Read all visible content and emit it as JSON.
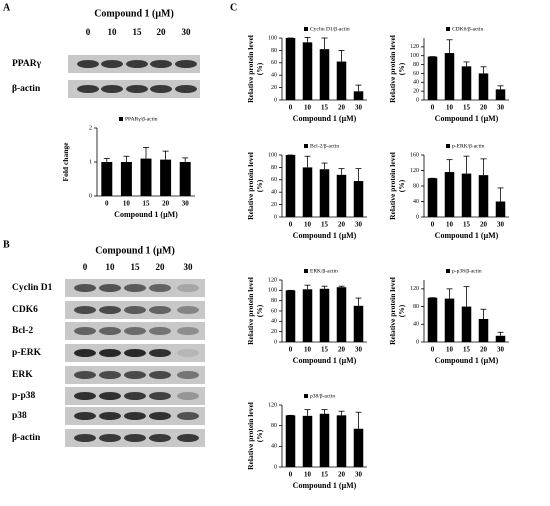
{
  "panel_labels": [
    "A",
    "B",
    "C"
  ],
  "blot_A": {
    "title": "Compound 1 (μM)",
    "lanes": [
      "0",
      "10",
      "15",
      "20",
      "30"
    ],
    "rows": [
      "PPARγ",
      "β-actin"
    ]
  },
  "blot_B": {
    "title": "Compound 1 (μM)",
    "lanes": [
      "0",
      "10",
      "15",
      "20",
      "30"
    ],
    "rows": [
      "Cyclin D1",
      "CDK6",
      "Bcl-2",
      "p-ERK",
      "ERK",
      "p-p38",
      "p38",
      "β-actin"
    ]
  },
  "chart_data": [
    {
      "type": "bar",
      "legend": "PPARγ/β-actin",
      "y_label": "Fold change",
      "x_label": "Compound 1 (μM)",
      "categories": [
        "0",
        "10",
        "15",
        "20",
        "30"
      ],
      "values": [
        1,
        1,
        1.1,
        1.07,
        1
      ],
      "errors": [
        0.1,
        0.17,
        0.33,
        0.25,
        0.12
      ],
      "ylim": [
        0,
        2
      ],
      "yticks": [
        0,
        1,
        2
      ],
      "color": "#000000"
    },
    {
      "type": "bar",
      "legend": "Cyclin D1/β-actin",
      "y_label": "Relative protein level (%)",
      "x_label": "Compound 1 (μM)",
      "categories": [
        "0",
        "10",
        "15",
        "20",
        "30"
      ],
      "values": [
        100,
        93,
        82,
        62,
        14
      ],
      "errors": [
        0,
        8,
        18,
        18,
        10
      ],
      "ylim": [
        0,
        100
      ],
      "yticks": [
        0,
        20,
        40,
        60,
        80,
        100
      ],
      "color": "#000000"
    },
    {
      "type": "bar",
      "legend": "CDK6/β-actin",
      "y_label": "Relative protein level (%)",
      "x_label": "Compound 1 (μM)",
      "categories": [
        "0",
        "10",
        "15",
        "20",
        "30"
      ],
      "values": [
        98,
        106,
        76,
        60,
        24
      ],
      "errors": [
        0,
        30,
        10,
        15,
        8
      ],
      "ylim": [
        0,
        140
      ],
      "yticks": [
        0,
        20,
        40,
        60,
        80,
        100,
        120
      ],
      "color": "#000000"
    },
    {
      "type": "bar",
      "legend": "Bcl-2/β-actin",
      "y_label": "Relative protein level (%)",
      "x_label": "Compound 1 (μM)",
      "categories": [
        "0",
        "10",
        "15",
        "20",
        "30"
      ],
      "values": [
        100,
        80,
        77,
        68,
        58
      ],
      "errors": [
        0,
        18,
        10,
        10,
        20
      ],
      "ylim": [
        0,
        100
      ],
      "yticks": [
        0,
        20,
        40,
        60,
        80,
        100
      ],
      "color": "#000000"
    },
    {
      "type": "bar",
      "legend": "p-ERK/β-actin",
      "y_label": "Relative protein level (%)",
      "x_label": "Compound 1 (μM)",
      "categories": [
        "0",
        "10",
        "15",
        "20",
        "30"
      ],
      "values": [
        100,
        116,
        112,
        108,
        40
      ],
      "errors": [
        0,
        32,
        45,
        42,
        35
      ],
      "ylim": [
        0,
        160
      ],
      "yticks": [
        0,
        40,
        80,
        120,
        160
      ],
      "color": "#000000"
    },
    {
      "type": "bar",
      "legend": "ERK/β-actin",
      "y_label": "Relative protein level (%)",
      "x_label": "Compound 1 (μM)",
      "categories": [
        "0",
        "10",
        "15",
        "20",
        "30"
      ],
      "values": [
        100,
        102,
        103,
        106,
        70
      ],
      "errors": [
        0,
        8,
        5,
        2,
        15
      ],
      "ylim": [
        0,
        120
      ],
      "yticks": [
        0,
        20,
        40,
        60,
        80,
        100,
        120
      ],
      "color": "#000000"
    },
    {
      "type": "bar",
      "legend": "p-p38/β-actin",
      "y_label": "Relative protein level (%)",
      "x_label": "Compound 1 (μM)",
      "categories": [
        "0",
        "10",
        "15",
        "20",
        "30"
      ],
      "values": [
        100,
        98,
        80,
        52,
        14
      ],
      "errors": [
        0,
        22,
        45,
        22,
        8
      ],
      "ylim": [
        0,
        140
      ],
      "yticks": [
        0,
        40,
        80,
        120
      ],
      "color": "#000000"
    },
    {
      "type": "bar",
      "legend": "p38/β-actin",
      "y_label": "Relative protein level (%)",
      "x_label": "Compound 1 (μM)",
      "categories": [
        "0",
        "10",
        "15",
        "20",
        "30"
      ],
      "values": [
        100,
        99,
        103,
        100,
        74
      ],
      "errors": [
        0,
        12,
        8,
        8,
        32
      ],
      "ylim": [
        0,
        120
      ],
      "yticks": [
        0,
        40,
        80,
        120
      ],
      "color": "#000000"
    }
  ]
}
